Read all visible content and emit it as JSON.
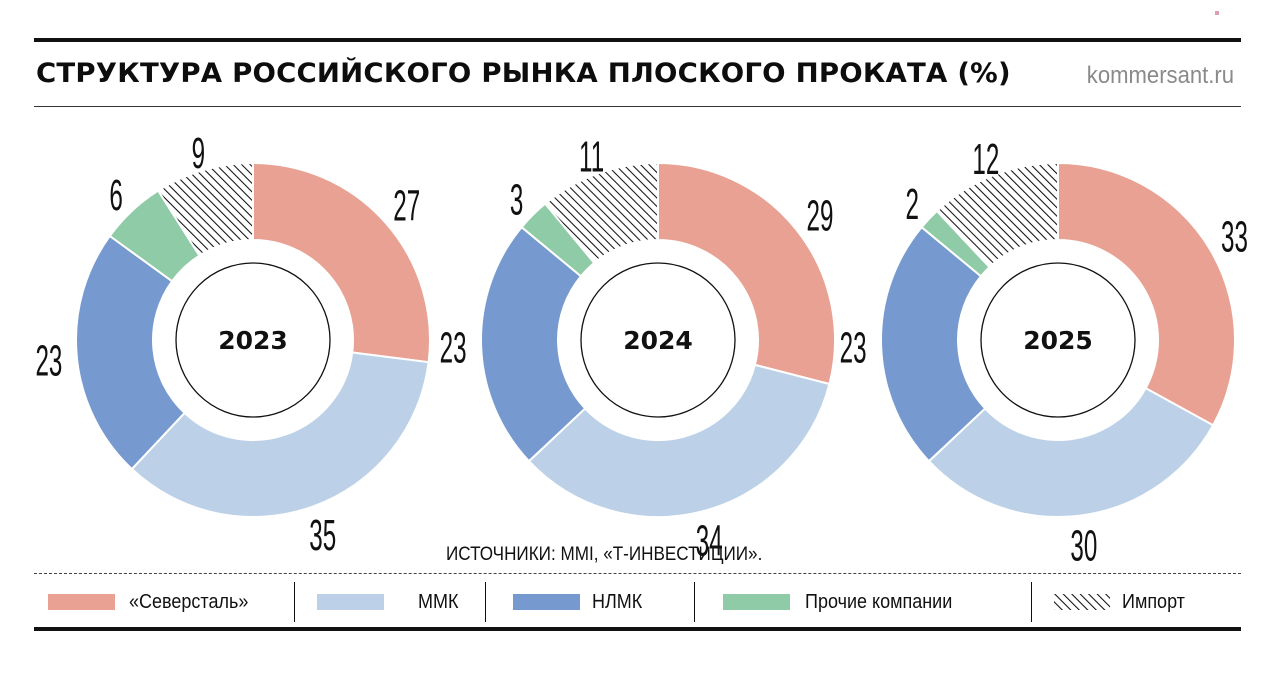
{
  "header": {
    "title": "СТРУКТУРА РОССИЙСКОГО РЫНКА ПЛОСКОГО ПРОКАТА (%)",
    "brand": "kommersant.ru"
  },
  "source": "ИСТОЧНИКИ: MMI, «Т-ИНВЕСТИЦИИ».",
  "legend": [
    {
      "label": "«Северсталь»",
      "color": "#E8A192",
      "pattern": "solid"
    },
    {
      "label": "ММК",
      "color": "#BCD1E7",
      "pattern": "solid"
    },
    {
      "label": "НЛМК",
      "color": "#7699CF",
      "pattern": "solid"
    },
    {
      "label": "Прочие компании",
      "color": "#8ECBA6",
      "pattern": "solid"
    },
    {
      "label": "Импорт",
      "color": "#111111",
      "pattern": "hatch"
    }
  ],
  "chart_data": [
    {
      "type": "pie",
      "title": "2023",
      "categories": [
        "«Северсталь»",
        "ММК",
        "НЛМК",
        "Прочие компании",
        "Импорт"
      ],
      "values": [
        27,
        35,
        23,
        6,
        9
      ],
      "unit": "%",
      "style": "donut"
    },
    {
      "type": "pie",
      "title": "2024",
      "categories": [
        "«Северсталь»",
        "ММК",
        "НЛМК",
        "Прочие компании",
        "Импорт"
      ],
      "values": [
        29,
        34,
        23,
        3,
        11
      ],
      "unit": "%",
      "style": "donut"
    },
    {
      "type": "pie",
      "title": "2025",
      "categories": [
        "«Северсталь»",
        "ММК",
        "НЛМК",
        "Прочие компании",
        "Импорт"
      ],
      "values": [
        33,
        30,
        23,
        2,
        12
      ],
      "unit": "%",
      "style": "donut"
    }
  ]
}
